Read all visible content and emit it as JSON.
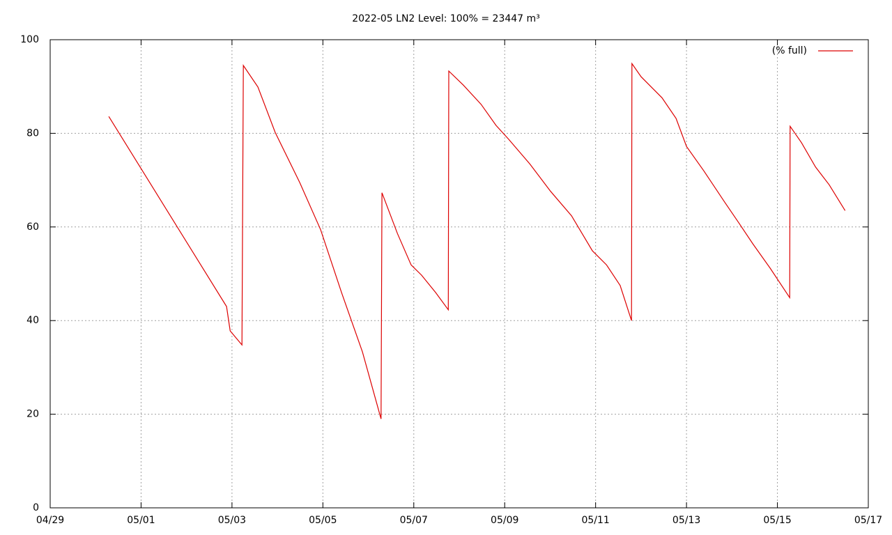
{
  "chart_data": {
    "type": "line",
    "title": "2022-05 LN2 Level: 100% = 23447 m³",
    "x": [
      120.29,
      122.88,
      122.96,
      123.22,
      123.25,
      123.57,
      123.95,
      124.49,
      124.95,
      125.41,
      125.87,
      126.28,
      126.3,
      126.64,
      126.94,
      127.17,
      127.48,
      127.76,
      127.77,
      128.09,
      128.48,
      128.81,
      129.09,
      129.55,
      130.01,
      130.47,
      130.93,
      131.24,
      131.54,
      131.79,
      131.8,
      132.0,
      132.46,
      132.77,
      133.0,
      133.38,
      133.84,
      134.15,
      134.46,
      134.84,
      135.27,
      135.28,
      135.53,
      135.84,
      136.14,
      136.49
    ],
    "series": [
      {
        "name": "(% full)",
        "color": "#dd0000",
        "values": [
          83.6,
          43,
          37.8,
          34.8,
          94.5,
          89.9,
          80.2,
          69.5,
          59.4,
          46,
          33.3,
          19,
          67.3,
          58.6,
          51.9,
          49.7,
          46,
          42.3,
          93.3,
          90.3,
          86.2,
          81.7,
          78.7,
          73.5,
          67.6,
          62.4,
          54.9,
          51.9,
          47.5,
          40,
          94.9,
          92.1,
          87.6,
          83.2,
          77.2,
          72,
          65.3,
          60.9,
          56.4,
          51.2,
          44.9,
          81.5,
          78,
          72.8,
          69,
          63.5
        ]
      }
    ],
    "xlim": [
      119,
      137
    ],
    "xticks": [
      {
        "value": 119,
        "label": "04/29"
      },
      {
        "value": 121,
        "label": "05/01"
      },
      {
        "value": 123,
        "label": "05/03"
      },
      {
        "value": 125,
        "label": "05/05"
      },
      {
        "value": 127,
        "label": "05/07"
      },
      {
        "value": 129,
        "label": "05/09"
      },
      {
        "value": 131,
        "label": "05/11"
      },
      {
        "value": 133,
        "label": "05/13"
      },
      {
        "value": 135,
        "label": "05/15"
      },
      {
        "value": 137,
        "label": "05/17"
      }
    ],
    "ylim": [
      0,
      100
    ],
    "yticks": [
      0,
      20,
      40,
      60,
      80,
      100
    ],
    "grid": true,
    "legend": "top-right"
  }
}
